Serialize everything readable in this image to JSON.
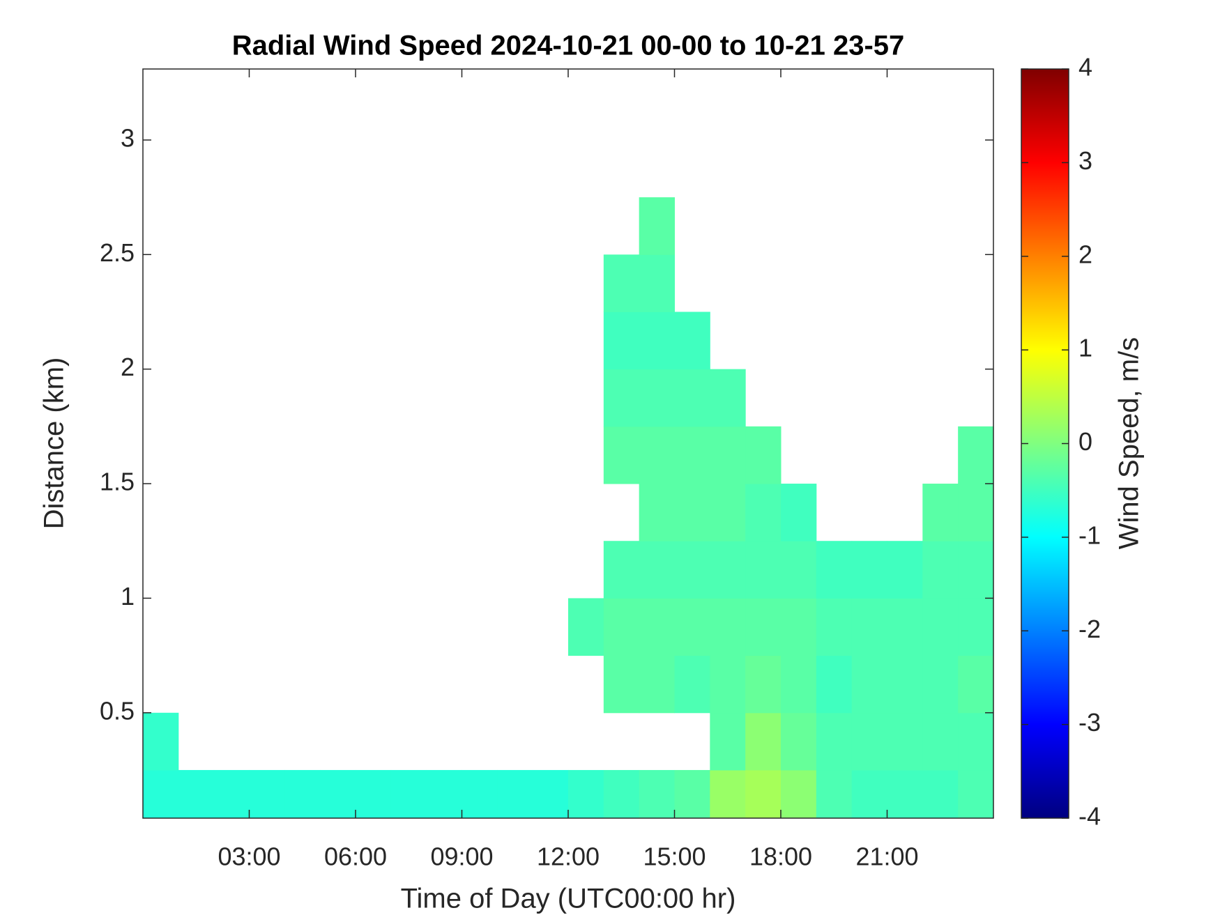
{
  "chart_data": {
    "type": "heatmap",
    "title": "Radial Wind Speed 2024-10-21 00-00 to 10-21 23-57",
    "x_label": "Time of Day (UTC00:00 hr)",
    "y_label": "Distance (km)",
    "colorbar_label": "Wind Speed, m/s",
    "colormap": "jet",
    "x_bins": [
      0,
      1,
      2,
      3,
      4,
      5,
      6,
      7,
      8,
      9,
      10,
      11,
      12,
      13,
      14,
      15,
      16,
      17,
      18,
      19,
      20,
      21,
      22,
      23,
      24
    ],
    "y_bins": [
      0.04,
      0.25,
      0.5,
      0.75,
      1,
      1.25,
      1.5,
      1.75,
      2,
      2.25,
      2.5,
      2.75,
      3,
      3.31
    ],
    "z": [
      [
        -0.7,
        -0.7,
        -0.7,
        -0.7,
        -0.7,
        -0.7,
        -0.7,
        -0.7,
        -0.7,
        -0.7,
        -0.7,
        -0.7,
        -0.6,
        -0.5,
        -0.4,
        -0.3,
        0.2,
        0.3,
        0.1,
        -0.4,
        -0.5,
        -0.5,
        -0.5,
        -0.4
      ],
      [
        -0.6,
        null,
        null,
        null,
        null,
        null,
        null,
        null,
        null,
        null,
        null,
        null,
        null,
        null,
        null,
        null,
        -0.3,
        0.1,
        -0.2,
        -0.4,
        -0.4,
        -0.4,
        -0.4,
        -0.4
      ],
      [
        null,
        null,
        null,
        null,
        null,
        null,
        null,
        null,
        null,
        null,
        null,
        null,
        null,
        -0.3,
        -0.3,
        -0.4,
        -0.3,
        -0.2,
        -0.3,
        -0.5,
        -0.4,
        -0.4,
        -0.4,
        -0.3
      ],
      [
        null,
        null,
        null,
        null,
        null,
        null,
        null,
        null,
        null,
        null,
        null,
        null,
        -0.4,
        -0.3,
        -0.3,
        -0.3,
        -0.3,
        -0.3,
        -0.3,
        -0.4,
        -0.4,
        -0.4,
        -0.4,
        -0.4
      ],
      [
        null,
        null,
        null,
        null,
        null,
        null,
        null,
        null,
        null,
        null,
        null,
        null,
        null,
        -0.4,
        -0.4,
        -0.4,
        -0.4,
        -0.4,
        -0.4,
        -0.5,
        -0.5,
        -0.5,
        -0.4,
        -0.4
      ],
      [
        null,
        null,
        null,
        null,
        null,
        null,
        null,
        null,
        null,
        null,
        null,
        null,
        null,
        null,
        -0.3,
        -0.3,
        -0.3,
        -0.4,
        -0.5,
        null,
        null,
        null,
        -0.3,
        -0.3
      ],
      [
        null,
        null,
        null,
        null,
        null,
        null,
        null,
        null,
        null,
        null,
        null,
        null,
        null,
        -0.3,
        -0.3,
        -0.3,
        -0.3,
        -0.3,
        null,
        null,
        null,
        null,
        null,
        -0.3
      ],
      [
        null,
        null,
        null,
        null,
        null,
        null,
        null,
        null,
        null,
        null,
        null,
        null,
        null,
        -0.4,
        -0.4,
        -0.4,
        -0.4,
        null,
        null,
        null,
        null,
        null,
        null,
        null
      ],
      [
        null,
        null,
        null,
        null,
        null,
        null,
        null,
        null,
        null,
        null,
        null,
        null,
        null,
        -0.5,
        -0.5,
        -0.5,
        null,
        null,
        null,
        null,
        null,
        null,
        null,
        null
      ],
      [
        null,
        null,
        null,
        null,
        null,
        null,
        null,
        null,
        null,
        null,
        null,
        null,
        null,
        -0.4,
        -0.4,
        null,
        null,
        null,
        null,
        null,
        null,
        null,
        null,
        null
      ],
      [
        null,
        null,
        null,
        null,
        null,
        null,
        null,
        null,
        null,
        null,
        null,
        null,
        null,
        null,
        -0.3,
        null,
        null,
        null,
        null,
        null,
        null,
        null,
        null,
        null
      ],
      [
        null,
        null,
        null,
        null,
        null,
        null,
        null,
        null,
        null,
        null,
        null,
        null,
        null,
        null,
        null,
        null,
        null,
        null,
        null,
        null,
        null,
        null,
        null,
        null
      ],
      [
        null,
        null,
        null,
        null,
        null,
        null,
        null,
        null,
        null,
        null,
        null,
        null,
        null,
        null,
        null,
        null,
        null,
        null,
        null,
        null,
        null,
        null,
        null,
        null
      ]
    ],
    "xlim": [
      0,
      24
    ],
    "xticks": [
      {
        "value": 3,
        "label": "03:00"
      },
      {
        "value": 6,
        "label": "06:00"
      },
      {
        "value": 9,
        "label": "09:00"
      },
      {
        "value": 12,
        "label": "12:00"
      },
      {
        "value": 15,
        "label": "15:00"
      },
      {
        "value": 18,
        "label": "18:00"
      },
      {
        "value": 21,
        "label": "21:00"
      }
    ],
    "ylim": [
      0.04,
      3.31
    ],
    "yticks": [
      0.5,
      1,
      1.5,
      2,
      2.5,
      3
    ],
    "clim": [
      -4,
      4
    ],
    "cticks": [
      -4,
      -3,
      -2,
      -1,
      0,
      1,
      2,
      3,
      4
    ]
  }
}
